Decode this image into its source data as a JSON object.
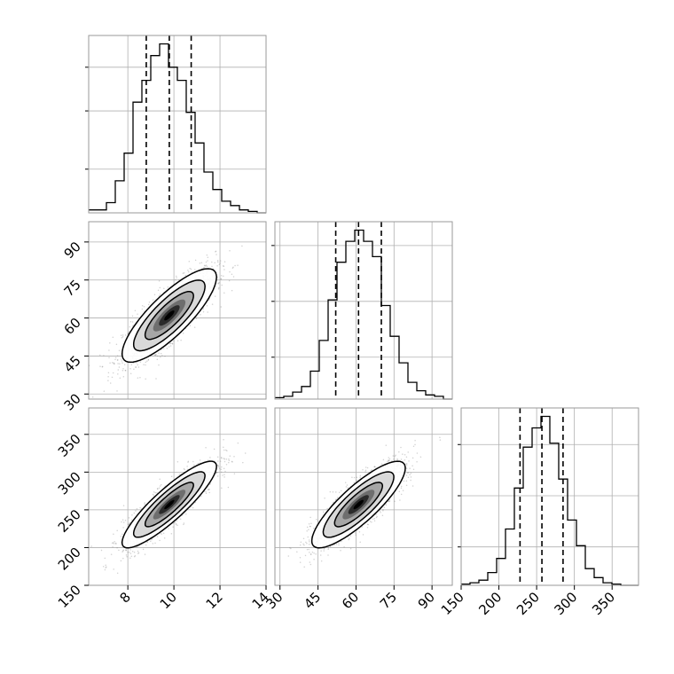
{
  "chart_data": {
    "type": "corner-plot",
    "grid": true,
    "colors": {
      "line": "#000000",
      "grid": "#b0b0b0",
      "frame": "#9a9a9a",
      "background": "#ffffff",
      "scatter": "#7f7f7f",
      "contour_fill_levels": [
        "#ffffff",
        "#d9d9d9",
        "#a6a6a6",
        "#6e6e6e",
        "#2b2b2b",
        "#000000"
      ]
    },
    "parameters": [
      {
        "key": "p1",
        "range": [
          6.3,
          14.0
        ],
        "ticks": [
          8,
          10,
          12,
          14
        ],
        "tick_labels": [
          "8",
          "10",
          "12",
          "14"
        ],
        "mean": 9.8,
        "sd": 1.0,
        "quantiles": [
          8.8,
          9.8,
          10.75
        ]
      },
      {
        "key": "p2",
        "range": [
          28,
          98
        ],
        "ticks": [
          30,
          45,
          60,
          75,
          90
        ],
        "tick_labels": [
          "30",
          "45",
          "60",
          "75",
          "90"
        ],
        "mean": 61,
        "sd": 9,
        "quantiles": [
          52,
          61,
          70
        ]
      },
      {
        "key": "p3",
        "range": [
          150,
          385
        ],
        "ticks": [
          150,
          200,
          250,
          300,
          350
        ],
        "tick_labels": [
          "150",
          "200",
          "250",
          "300",
          "350"
        ],
        "mean": 257,
        "sd": 28,
        "quantiles": [
          228,
          257,
          285
        ]
      }
    ],
    "histograms": [
      {
        "param": "p1",
        "bin_edges": [
          6.3,
          6.685,
          7.07,
          7.455,
          7.84,
          8.225,
          8.61,
          8.995,
          9.38,
          9.765,
          10.15,
          10.535,
          10.92,
          11.305,
          11.69,
          12.075,
          12.46,
          12.845,
          13.23,
          13.615,
          14.0
        ],
        "counts": [
          2,
          2,
          7,
          22,
          41,
          76,
          91,
          108,
          116,
          100,
          91,
          69,
          48,
          28,
          16,
          8,
          5,
          2,
          1,
          0
        ],
        "yticks": [
          30,
          70,
          100
        ]
      },
      {
        "param": "p2",
        "bin_edges": [
          28,
          31.5,
          35,
          38.5,
          42,
          45.5,
          49,
          52.5,
          56,
          59.5,
          63,
          66.5,
          70,
          73.5,
          77,
          80.5,
          84,
          87.5,
          91,
          94.5,
          98
        ],
        "counts": [
          1,
          2,
          5,
          9,
          20,
          42,
          71,
          98,
          113,
          121,
          113,
          102,
          67,
          45,
          26,
          12,
          6,
          3,
          2,
          0
        ],
        "yticks": [
          30,
          70,
          110
        ]
      },
      {
        "param": "p3",
        "bin_edges": [
          150,
          161.75,
          173.5,
          185.25,
          197,
          208.75,
          220.5,
          232.25,
          244,
          255.75,
          267.5,
          279.25,
          291,
          302.75,
          314.5,
          326.25,
          338,
          349.75,
          361.5,
          373.25,
          385
        ],
        "counts": [
          1,
          2,
          4,
          10,
          21,
          44,
          76,
          108,
          123,
          132,
          111,
          83,
          51,
          31,
          13,
          6,
          2,
          1,
          0,
          0
        ],
        "yticks": [
          30,
          70,
          110
        ]
      }
    ],
    "scatter_pairs": [
      {
        "x": "p1",
        "y": "p2",
        "rho": 0.82
      },
      {
        "x": "p1",
        "y": "p3",
        "rho": 0.88
      },
      {
        "x": "p2",
        "y": "p3",
        "rho": 0.84
      }
    ]
  }
}
